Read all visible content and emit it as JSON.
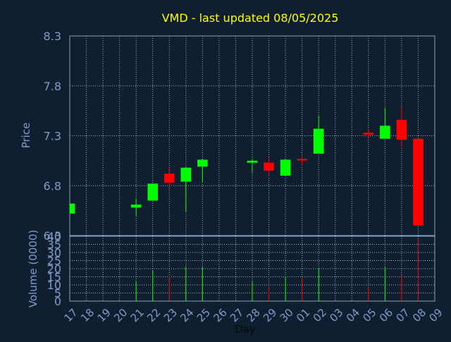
{
  "chart_data": [
    {
      "type": "candlestick",
      "title": "VMD - last updated 08/05/2025",
      "ylabel": "Price",
      "ylim": [
        6.3,
        8.3
      ],
      "yticks": [
        "8.3",
        "7.8",
        "7.3",
        "6.8",
        "6.3"
      ],
      "grid": true,
      "up_color": "#00ff00",
      "down_color": "#ff0000",
      "candles": [
        {
          "day": "17",
          "open": 6.52,
          "high": 6.62,
          "low": 6.52,
          "close": 6.62
        },
        {
          "day": "21",
          "open": 6.58,
          "high": 6.67,
          "low": 6.5,
          "close": 6.61
        },
        {
          "day": "22",
          "open": 6.65,
          "high": 6.82,
          "low": 6.65,
          "close": 6.82
        },
        {
          "day": "23",
          "open": 6.92,
          "high": 6.98,
          "low": 6.77,
          "close": 6.83
        },
        {
          "day": "24",
          "open": 6.84,
          "high": 6.99,
          "low": 6.54,
          "close": 6.98
        },
        {
          "day": "25",
          "open": 6.99,
          "high": 7.07,
          "low": 6.83,
          "close": 7.06
        },
        {
          "day": "28",
          "open": 7.03,
          "high": 7.07,
          "low": 6.93,
          "close": 7.05
        },
        {
          "day": "29",
          "open": 7.03,
          "high": 7.08,
          "low": 6.89,
          "close": 6.95
        },
        {
          "day": "30",
          "open": 6.9,
          "high": 7.07,
          "low": 6.9,
          "close": 7.06
        },
        {
          "day": "01",
          "open": 7.06,
          "high": 7.1,
          "low": 7.0,
          "close": 7.05
        },
        {
          "day": "02",
          "open": 7.12,
          "high": 7.5,
          "low": 7.12,
          "close": 7.37
        },
        {
          "day": "05",
          "open": 7.33,
          "high": 7.37,
          "low": 7.28,
          "close": 7.31
        },
        {
          "day": "06",
          "open": 7.27,
          "high": 7.58,
          "low": 7.27,
          "close": 7.4
        },
        {
          "day": "07",
          "open": 7.46,
          "high": 7.59,
          "low": 7.19,
          "close": 7.26
        },
        {
          "day": "08",
          "open": 7.27,
          "high": 7.27,
          "low": 6.4,
          "close": 6.4
        }
      ]
    },
    {
      "type": "bar",
      "ylabel": "Volume (0000)",
      "xlabel": "Day",
      "ylim": [
        0,
        40
      ],
      "yticks": [
        "40",
        "35",
        "30",
        "25",
        "20",
        "15",
        "10",
        "5",
        "0"
      ],
      "categories": [
        "17",
        "18",
        "19",
        "20",
        "21",
        "22",
        "23",
        "24",
        "25",
        "26",
        "27",
        "28",
        "29",
        "30",
        "01",
        "02",
        "03",
        "04",
        "05",
        "06",
        "07",
        "08",
        "09"
      ],
      "values": [
        0,
        0,
        0,
        0,
        12,
        19,
        15,
        21,
        21,
        0,
        0,
        12,
        9,
        15,
        14,
        20,
        0,
        0,
        9,
        21,
        16,
        38,
        0
      ],
      "up_down": [
        "",
        "",
        "",
        "",
        "up",
        "up",
        "down",
        "up",
        "up",
        "",
        "",
        "up",
        "down",
        "up",
        "down",
        "up",
        "",
        "",
        "down",
        "up",
        "down",
        "down",
        ""
      ],
      "grid": true
    }
  ]
}
